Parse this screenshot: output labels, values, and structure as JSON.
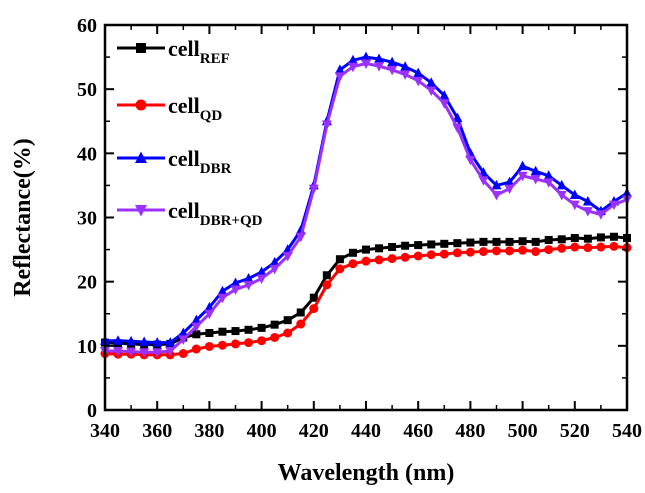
{
  "chart_data": {
    "type": "line",
    "title": "",
    "xlabel": "Wavelength (nm)",
    "ylabel": "Reflectance(%)",
    "xlim": [
      340,
      540
    ],
    "ylim": [
      0,
      60
    ],
    "xticks": [
      "340",
      "360",
      "380",
      "400",
      "420",
      "440",
      "460",
      "480",
      "500",
      "520",
      "540"
    ],
    "yticks": [
      "0",
      "10",
      "20",
      "30",
      "40",
      "50",
      "60"
    ],
    "grid": false,
    "legend_position": "top-left",
    "series": [
      {
        "name": "cell_REF",
        "legend_main": "cell",
        "legend_sub": "REF",
        "color": "#000000",
        "marker": "square",
        "x": [
          340,
          345,
          350,
          355,
          360,
          365,
          370,
          375,
          380,
          385,
          390,
          395,
          400,
          405,
          410,
          415,
          420,
          425,
          430,
          435,
          440,
          445,
          450,
          455,
          460,
          465,
          470,
          475,
          480,
          485,
          490,
          495,
          500,
          505,
          510,
          515,
          520,
          525,
          530,
          535,
          540
        ],
        "y": [
          10.5,
          10.4,
          10.3,
          10.2,
          10.2,
          10.3,
          11.3,
          11.8,
          12.0,
          12.2,
          12.3,
          12.5,
          12.8,
          13.3,
          14.0,
          15.2,
          17.5,
          21.0,
          23.5,
          24.5,
          25.0,
          25.2,
          25.4,
          25.6,
          25.7,
          25.8,
          25.9,
          26.0,
          26.1,
          26.2,
          26.2,
          26.2,
          26.3,
          26.2,
          26.5,
          26.6,
          26.8,
          26.7,
          26.9,
          27.0,
          26.8
        ]
      },
      {
        "name": "cell_QD",
        "legend_main": "cell",
        "legend_sub": "QD",
        "color": "#ff0000",
        "marker": "circle",
        "x": [
          340,
          345,
          350,
          355,
          360,
          365,
          370,
          375,
          380,
          385,
          390,
          395,
          400,
          405,
          410,
          415,
          420,
          425,
          430,
          435,
          440,
          445,
          450,
          455,
          460,
          465,
          470,
          475,
          480,
          485,
          490,
          495,
          500,
          505,
          510,
          515,
          520,
          525,
          530,
          535,
          540
        ],
        "y": [
          8.8,
          8.7,
          8.7,
          8.6,
          8.6,
          8.6,
          8.8,
          9.5,
          9.9,
          10.1,
          10.3,
          10.5,
          10.8,
          11.3,
          12.0,
          13.4,
          15.8,
          19.5,
          22.0,
          22.8,
          23.2,
          23.4,
          23.6,
          23.8,
          24.0,
          24.2,
          24.3,
          24.5,
          24.6,
          24.7,
          24.8,
          24.8,
          24.9,
          24.7,
          25.0,
          25.2,
          25.4,
          25.3,
          25.4,
          25.5,
          25.3
        ]
      },
      {
        "name": "cell_DBR",
        "legend_main": "cell",
        "legend_sub": "DBR",
        "color": "#0000ff",
        "marker": "triangle-up",
        "x": [
          340,
          345,
          350,
          355,
          360,
          365,
          370,
          375,
          380,
          385,
          390,
          395,
          400,
          405,
          410,
          415,
          420,
          425,
          430,
          435,
          440,
          445,
          450,
          455,
          460,
          465,
          470,
          475,
          480,
          485,
          490,
          495,
          500,
          505,
          510,
          515,
          520,
          525,
          530,
          535,
          540
        ],
        "y": [
          10.8,
          10.8,
          10.7,
          10.6,
          10.5,
          10.5,
          12.0,
          14.0,
          16.0,
          18.5,
          19.8,
          20.5,
          21.5,
          23.0,
          25.0,
          28.0,
          35.0,
          45.0,
          53.0,
          54.5,
          55.0,
          54.7,
          54.2,
          53.5,
          52.5,
          51.0,
          49.0,
          45.5,
          40.0,
          37.0,
          35.0,
          35.5,
          38.0,
          37.2,
          36.5,
          35.0,
          33.5,
          32.5,
          31.0,
          32.5,
          33.8
        ]
      },
      {
        "name": "cell_DBR+QD",
        "legend_main": "cell",
        "legend_sub": "DBR+QD",
        "color": "#9b30ff",
        "marker": "triangle-down",
        "x": [
          340,
          345,
          350,
          355,
          360,
          365,
          370,
          375,
          380,
          385,
          390,
          395,
          400,
          405,
          410,
          415,
          420,
          425,
          430,
          435,
          440,
          445,
          450,
          455,
          460,
          465,
          470,
          475,
          480,
          485,
          490,
          495,
          500,
          505,
          510,
          515,
          520,
          525,
          530,
          535,
          540
        ],
        "y": [
          9.2,
          9.2,
          9.1,
          9.0,
          9.0,
          9.2,
          11.0,
          13.0,
          15.0,
          17.5,
          18.8,
          19.5,
          20.5,
          22.0,
          24.0,
          27.0,
          34.5,
          44.5,
          52.0,
          53.5,
          54.0,
          53.6,
          53.0,
          52.3,
          51.3,
          49.8,
          47.8,
          44.0,
          39.0,
          35.8,
          33.5,
          34.5,
          36.5,
          36.0,
          35.5,
          33.5,
          32.0,
          31.0,
          30.5,
          32.0,
          32.8
        ]
      }
    ]
  }
}
